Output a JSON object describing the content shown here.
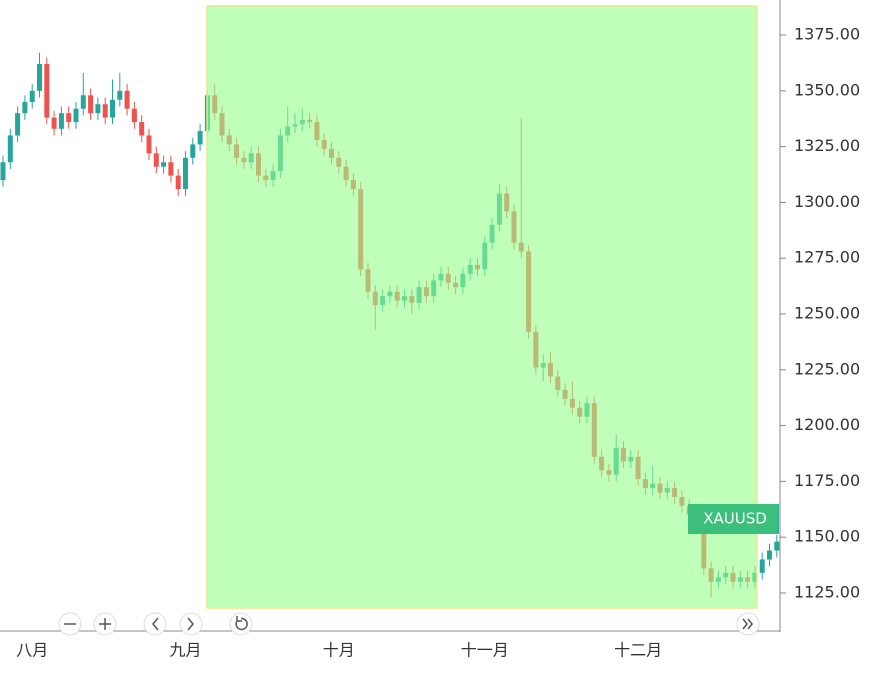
{
  "chart_data": {
    "type": "candlestick",
    "title_tag": "XAUUSD",
    "categories": [
      null,
      null,
      null,
      null,
      "八月",
      null,
      null,
      null,
      null,
      null,
      null,
      null,
      null,
      null,
      null,
      null,
      null,
      null,
      null,
      null,
      null,
      null,
      null,
      null,
      null,
      "九月",
      null,
      null,
      null,
      null,
      null,
      null,
      null,
      null,
      null,
      null,
      null,
      null,
      null,
      null,
      null,
      null,
      null,
      null,
      null,
      null,
      "十月",
      null,
      null,
      null,
      null,
      null,
      null,
      null,
      null,
      null,
      null,
      null,
      null,
      null,
      null,
      null,
      null,
      null,
      null,
      null,
      "十一月",
      null,
      null,
      null,
      null,
      null,
      null,
      null,
      null,
      null,
      null,
      null,
      null,
      null,
      null,
      null,
      null,
      null,
      null,
      null,
      null,
      "十二月",
      null,
      null,
      null,
      null,
      null,
      null,
      null,
      null,
      null,
      null,
      null,
      null,
      null,
      null,
      null,
      null,
      null,
      null,
      null
    ],
    "open": [
      1310,
      1318,
      1330,
      1340,
      1345,
      1350,
      1362,
      1338,
      1333,
      1340,
      1336,
      1342,
      1348,
      1340,
      1344,
      1338,
      1346,
      1350,
      1342,
      1336,
      1330,
      1322,
      1316,
      1318,
      1312,
      1306,
      1320,
      1326,
      1332,
      1348,
      1340,
      1330,
      1326,
      1320,
      1318,
      1322,
      1312,
      1310,
      1314,
      1330,
      1334,
      1335,
      1337,
      1336,
      1328,
      1324,
      1320,
      1316,
      1310,
      1306,
      1270,
      1260,
      1254,
      1258,
      1260,
      1256,
      1258,
      1255,
      1262,
      1258,
      1265,
      1268,
      1264,
      1262,
      1268,
      1272,
      1270,
      1282,
      1290,
      1304,
      1296,
      1282,
      1278,
      1242,
      1226,
      1228,
      1222,
      1216,
      1212,
      1208,
      1204,
      1210,
      1186,
      1180,
      1178,
      1190,
      1184,
      1186,
      1176,
      1172,
      1174,
      1170,
      1172,
      1168,
      1164,
      1160,
      1162,
      1136,
      1130,
      1132,
      1134,
      1130,
      1132,
      1130,
      1134,
      1140,
      1144
    ],
    "high": [
      1321,
      1333,
      1343,
      1348,
      1353,
      1367,
      1365,
      1341,
      1343,
      1343,
      1345,
      1358,
      1351,
      1347,
      1347,
      1355,
      1358,
      1353,
      1345,
      1339,
      1333,
      1325,
      1321,
      1321,
      1315,
      1323,
      1329,
      1335,
      1351,
      1353,
      1343,
      1333,
      1329,
      1323,
      1325,
      1325,
      1315,
      1317,
      1333,
      1343,
      1340,
      1342,
      1340,
      1339,
      1331,
      1327,
      1323,
      1319,
      1313,
      1309,
      1273,
      1263,
      1261,
      1263,
      1263,
      1261,
      1261,
      1265,
      1265,
      1268,
      1271,
      1271,
      1267,
      1271,
      1275,
      1275,
      1285,
      1293,
      1308,
      1307,
      1299,
      1338,
      1281,
      1245,
      1232,
      1233,
      1225,
      1219,
      1220,
      1211,
      1213,
      1213,
      1189,
      1183,
      1196,
      1193,
      1189,
      1189,
      1179,
      1182,
      1177,
      1175,
      1175,
      1171,
      1167,
      1165,
      1165,
      1139,
      1135,
      1137,
      1137,
      1135,
      1135,
      1137,
      1143,
      1147,
      1151
    ],
    "low": [
      1307,
      1315,
      1327,
      1337,
      1342,
      1347,
      1335,
      1330,
      1330,
      1333,
      1333,
      1339,
      1337,
      1337,
      1335,
      1335,
      1343,
      1339,
      1333,
      1327,
      1319,
      1313,
      1313,
      1309,
      1303,
      1303,
      1317,
      1323,
      1329,
      1337,
      1327,
      1323,
      1317,
      1315,
      1315,
      1309,
      1307,
      1307,
      1311,
      1327,
      1331,
      1332,
      1333,
      1325,
      1321,
      1317,
      1313,
      1307,
      1303,
      1267,
      1257,
      1243,
      1251,
      1255,
      1253,
      1253,
      1250,
      1252,
      1255,
      1255,
      1262,
      1261,
      1259,
      1259,
      1265,
      1267,
      1267,
      1279,
      1287,
      1293,
      1279,
      1275,
      1239,
      1223,
      1220,
      1219,
      1213,
      1209,
      1205,
      1201,
      1201,
      1183,
      1177,
      1175,
      1175,
      1181,
      1181,
      1173,
      1169,
      1169,
      1167,
      1167,
      1165,
      1161,
      1157,
      1157,
      1133,
      1123,
      1127,
      1129,
      1127,
      1127,
      1127,
      1127,
      1131,
      1137,
      1141
    ],
    "close": [
      1318,
      1330,
      1340,
      1345,
      1350,
      1362,
      1338,
      1333,
      1340,
      1336,
      1342,
      1348,
      1340,
      1344,
      1338,
      1346,
      1350,
      1342,
      1336,
      1330,
      1322,
      1316,
      1318,
      1312,
      1306,
      1320,
      1326,
      1332,
      1348,
      1340,
      1330,
      1326,
      1320,
      1318,
      1322,
      1312,
      1310,
      1314,
      1330,
      1334,
      1335,
      1337,
      1336,
      1328,
      1324,
      1320,
      1316,
      1310,
      1306,
      1270,
      1260,
      1254,
      1258,
      1260,
      1256,
      1258,
      1255,
      1262,
      1258,
      1265,
      1268,
      1264,
      1262,
      1268,
      1272,
      1270,
      1282,
      1290,
      1304,
      1296,
      1282,
      1278,
      1242,
      1226,
      1228,
      1222,
      1216,
      1212,
      1208,
      1204,
      1210,
      1186,
      1180,
      1178,
      1190,
      1184,
      1186,
      1176,
      1172,
      1174,
      1170,
      1172,
      1168,
      1164,
      1160,
      1162,
      1136,
      1130,
      1132,
      1134,
      1130,
      1132,
      1130,
      1134,
      1140,
      1144,
      1148
    ],
    "up_color": "#26a69a",
    "down_color": "#ef5350",
    "ylim": [
      1108.4,
      1390.7
    ],
    "yticks": [
      {
        "value": 1125,
        "label": "1125.00"
      },
      {
        "value": 1150,
        "label": "1150.00"
      },
      {
        "value": 1175,
        "label": "1175.00"
      },
      {
        "value": 1200,
        "label": "1200.00"
      },
      {
        "value": 1225,
        "label": "1225.00"
      },
      {
        "value": 1250,
        "label": "1250.00"
      },
      {
        "value": 1275,
        "label": "1275.00"
      },
      {
        "value": 1300,
        "label": "1300.00"
      },
      {
        "value": 1325,
        "label": "1325.00"
      },
      {
        "value": 1350,
        "label": "1350.00"
      },
      {
        "value": 1375,
        "label": "1375.00"
      }
    ]
  }
}
